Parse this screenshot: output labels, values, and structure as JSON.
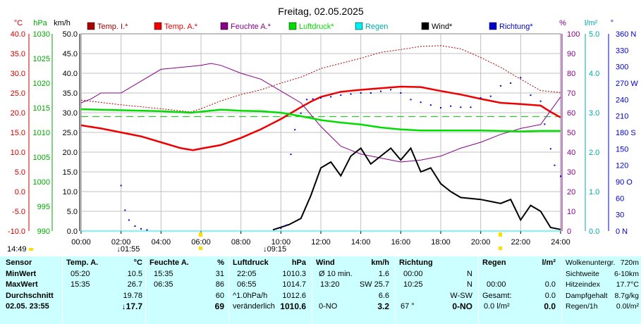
{
  "header": {
    "title": "Freitag, 02.05.2025",
    "units": [
      "°C",
      "hPa",
      "km/h",
      "%",
      "l/m²",
      "°"
    ],
    "legend": [
      {
        "label": "Temp. I.*",
        "color": "#aa0000"
      },
      {
        "label": "Temp. A.*",
        "color": "#ee0000"
      },
      {
        "label": "Feuchte A.*",
        "color": "#880088"
      },
      {
        "label": "Luftdruck*",
        "color": "#00dd00"
      },
      {
        "label": "Regen",
        "color": "#00eeee"
      },
      {
        "label": "Wind*",
        "color": "#000000"
      },
      {
        "label": "Richtung*",
        "color": "#0000cc"
      }
    ]
  },
  "chart_data": {
    "type": "line",
    "title": "Freitag, 02.05.2025",
    "x_ticks": [
      "00:00",
      "02:00",
      "04:00",
      "06:00",
      "08:00",
      "10:00",
      "12:00",
      "14:00",
      "16:00",
      "18:00",
      "20:00",
      "22:00",
      "24:00"
    ],
    "x_range_hours": [
      0,
      24
    ],
    "axes": {
      "temp": {
        "unit": "°C",
        "range": [
          -10,
          40
        ],
        "ticks": [
          "40.0",
          "35.0",
          "30.0",
          "25.0",
          "20.0",
          "15.0",
          "10.0",
          "5.0",
          "0.0",
          "-5.0",
          "-10.0"
        ],
        "color": "#cc0000"
      },
      "pressure": {
        "unit": "hPa",
        "range": [
          990,
          1030
        ],
        "ticks": [
          "1030",
          "1025",
          "1020",
          "1015",
          "1010",
          "1005",
          "1000",
          "995",
          "990"
        ],
        "color": "#00aa00"
      },
      "wind": {
        "unit": "km/h",
        "range": [
          0,
          50
        ],
        "ticks": [
          "50.0",
          "45.0",
          "40.0",
          "35.0",
          "30.0",
          "25.0",
          "20.0",
          "15.0",
          "10.0",
          "5.0",
          "0.0"
        ],
        "color": "#000000"
      },
      "humidity": {
        "unit": "%",
        "range": [
          0,
          100
        ],
        "ticks": [
          "100",
          "90",
          "80",
          "70",
          "60",
          "50",
          "40",
          "30",
          "20",
          "10",
          "0"
        ],
        "color": "#880088"
      },
      "rain": {
        "unit": "l/m²",
        "range": [
          0,
          5
        ],
        "ticks": [
          "5.0",
          "4.0",
          "3.0",
          "2.0",
          "1.0",
          "0.0"
        ],
        "color": "#00aaaa"
      },
      "direction": {
        "unit": "°",
        "range": [
          0,
          360
        ],
        "ticks": [
          "360 N",
          "330",
          "300",
          "270 W",
          "240",
          "210",
          "180 S",
          "150",
          "120",
          "90 O",
          "60",
          "30",
          "0 N"
        ],
        "color": "#0000cc"
      }
    },
    "series": [
      {
        "name": "Temp. I.*",
        "axis": "temp",
        "color": "#aa0000",
        "style": "dotted",
        "points": [
          [
            0,
            23.2
          ],
          [
            2,
            22
          ],
          [
            4,
            21
          ],
          [
            5.5,
            20.2
          ],
          [
            6,
            21
          ],
          [
            7,
            23
          ],
          [
            8,
            24.6
          ],
          [
            9,
            25.8
          ],
          [
            10,
            27.5
          ],
          [
            11,
            29
          ],
          [
            12,
            31.2
          ],
          [
            13,
            32.5
          ],
          [
            14,
            33.8
          ],
          [
            15,
            35.3
          ],
          [
            16,
            36
          ],
          [
            17,
            36.8
          ],
          [
            18,
            37
          ],
          [
            19,
            36.2
          ],
          [
            20,
            34
          ],
          [
            21,
            31.5
          ],
          [
            22,
            28.5
          ],
          [
            23,
            25.6
          ],
          [
            24,
            25.1
          ]
        ]
      },
      {
        "name": "Temp. A.*",
        "axis": "temp",
        "color": "#ee0000",
        "style": "solid",
        "points": [
          [
            0,
            16.8
          ],
          [
            1,
            16
          ],
          [
            2,
            15
          ],
          [
            3,
            14
          ],
          [
            4,
            12.5
          ],
          [
            5,
            11
          ],
          [
            5.6,
            10.5
          ],
          [
            6,
            10.9
          ],
          [
            7,
            11.8
          ],
          [
            8,
            13.6
          ],
          [
            9,
            15.8
          ],
          [
            10,
            18.4
          ],
          [
            11,
            21.4
          ],
          [
            11.5,
            22.8
          ],
          [
            12,
            24
          ],
          [
            13,
            25.3
          ],
          [
            14,
            25.8
          ],
          [
            15,
            26.2
          ],
          [
            16,
            26.6
          ],
          [
            17,
            26.5
          ],
          [
            18,
            25.5
          ],
          [
            19,
            24.6
          ],
          [
            20,
            23.5
          ],
          [
            21,
            22.5
          ],
          [
            22,
            22.2
          ],
          [
            23,
            21.8
          ],
          [
            23.5,
            20.2
          ],
          [
            24,
            18.8
          ]
        ]
      },
      {
        "name": "Feuchte A.*",
        "axis": "humidity",
        "color": "#880088",
        "style": "solid",
        "points": [
          [
            0,
            65
          ],
          [
            0.5,
            67
          ],
          [
            1,
            70
          ],
          [
            2,
            70
          ],
          [
            3,
            76
          ],
          [
            4,
            82
          ],
          [
            5,
            83
          ],
          [
            6,
            84
          ],
          [
            6.5,
            85
          ],
          [
            7,
            84
          ],
          [
            8,
            80
          ],
          [
            9,
            77
          ],
          [
            10,
            71
          ],
          [
            11,
            65
          ],
          [
            12,
            53
          ],
          [
            12.5,
            48
          ],
          [
            13,
            43
          ],
          [
            14,
            39
          ],
          [
            15,
            37
          ],
          [
            16,
            35
          ],
          [
            17,
            36
          ],
          [
            18,
            38
          ],
          [
            19,
            42
          ],
          [
            20,
            45
          ],
          [
            21,
            49
          ],
          [
            22,
            52
          ],
          [
            23,
            54
          ],
          [
            24,
            68
          ]
        ]
      },
      {
        "name": "Luftdruck*",
        "axis": "pressure",
        "color": "#00dd00",
        "style": "solid",
        "points": [
          [
            0,
            1014.7
          ],
          [
            2,
            1014.5
          ],
          [
            4,
            1014.3
          ],
          [
            5.5,
            1014
          ],
          [
            7,
            1014.6
          ],
          [
            8,
            1014.4
          ],
          [
            9,
            1014.3
          ],
          [
            10,
            1014
          ],
          [
            11,
            1013.3
          ],
          [
            12,
            1012.5
          ],
          [
            13,
            1012
          ],
          [
            14,
            1011.6
          ],
          [
            15,
            1011
          ],
          [
            16,
            1010.6
          ],
          [
            17,
            1010.4
          ],
          [
            18,
            1010.4
          ],
          [
            19,
            1010.4
          ],
          [
            20,
            1010.4
          ],
          [
            21,
            1010.3
          ],
          [
            22,
            1010.2
          ],
          [
            23,
            1010.3
          ],
          [
            24,
            1010.3
          ]
        ]
      },
      {
        "name": "Wind*",
        "axis": "wind",
        "color": "#000000",
        "style": "solid",
        "points": [
          [
            9.6,
            0.3
          ],
          [
            10.4,
            1.6
          ],
          [
            11,
            3.2
          ],
          [
            11.5,
            9
          ],
          [
            12,
            16
          ],
          [
            12.5,
            17.5
          ],
          [
            13,
            14
          ],
          [
            13.5,
            19
          ],
          [
            14,
            21
          ],
          [
            14.5,
            17
          ],
          [
            15,
            19
          ],
          [
            15.5,
            21
          ],
          [
            16,
            18
          ],
          [
            16.5,
            21
          ],
          [
            17,
            15
          ],
          [
            17.5,
            16
          ],
          [
            18,
            12
          ],
          [
            18.5,
            10
          ],
          [
            19,
            8.5
          ],
          [
            20,
            8
          ],
          [
            20.5,
            7.5
          ],
          [
            21,
            7
          ],
          [
            21.5,
            8
          ],
          [
            22,
            2.8
          ],
          [
            22.5,
            6.5
          ],
          [
            23,
            5
          ],
          [
            23.5,
            0.9
          ],
          [
            24,
            0.4
          ]
        ]
      },
      {
        "name": "Richtung*",
        "axis": "direction",
        "color": "#0000cc",
        "style": "dots",
        "points": [
          [
            2,
            83
          ],
          [
            2.2,
            38
          ],
          [
            2.4,
            20
          ],
          [
            2.7,
            9
          ],
          [
            3,
            4
          ],
          [
            3.3,
            2
          ],
          [
            10,
            5
          ],
          [
            10.3,
            11
          ],
          [
            10.5,
            140
          ],
          [
            10.7,
            185
          ],
          [
            11,
            215
          ],
          [
            11.3,
            240
          ],
          [
            11.6,
            241
          ],
          [
            12,
            243
          ],
          [
            12.5,
            245
          ],
          [
            13,
            248
          ],
          [
            13.5,
            250
          ],
          [
            14,
            252
          ],
          [
            14.5,
            252
          ],
          [
            15,
            255
          ],
          [
            15.5,
            258
          ],
          [
            16,
            252
          ],
          [
            16.5,
            240
          ],
          [
            17,
            235
          ],
          [
            17.5,
            230
          ],
          [
            18,
            225
          ],
          [
            18.5,
            228
          ],
          [
            19,
            226
          ],
          [
            19.5,
            226
          ],
          [
            20,
            243
          ],
          [
            20.5,
            246
          ],
          [
            21,
            265
          ],
          [
            21.5,
            270
          ],
          [
            22,
            280
          ],
          [
            22.5,
            248
          ],
          [
            23,
            237
          ],
          [
            23.2,
            195
          ],
          [
            23.5,
            150
          ],
          [
            23.7,
            120
          ],
          [
            24,
            100
          ]
        ]
      },
      {
        "name": "Regen",
        "axis": "rain",
        "color": "#00eeee",
        "style": "solid",
        "points": [
          [
            0,
            0
          ],
          [
            24,
            0
          ]
        ]
      }
    ],
    "reference_lines": [
      {
        "axis": "temp",
        "value": 19,
        "style": "dashed",
        "color": "#00cc00"
      }
    ],
    "markers": [
      {
        "label": "14:49",
        "at": -1.1
      },
      {
        "label": "01:55",
        "at": 1.92
      },
      {
        "label": "09:15",
        "at": 9.25
      }
    ]
  },
  "panel": {
    "sensor": {
      "h1": "Sensor",
      "rows": [
        "MinWert",
        "MaxWert",
        "Durchschnitt",
        "02.05. 23:55"
      ]
    },
    "temp": {
      "h1": "Temp. A.",
      "h2": "°C",
      "rows": [
        [
          "05:20",
          "10.5"
        ],
        [
          "15:35",
          "26.7"
        ],
        [
          "",
          "19.78"
        ],
        [
          "",
          "↓17.7"
        ]
      ]
    },
    "hum": {
      "h1": "Feuchte A.",
      "h2": "%",
      "rows": [
        [
          "15:35",
          "31"
        ],
        [
          "06:35",
          "86"
        ],
        [
          "",
          "60"
        ],
        [
          "",
          "69"
        ]
      ]
    },
    "press": {
      "h1": "Luftdruck",
      "h2": "hPa",
      "rows": [
        [
          "22:05",
          "1010.3"
        ],
        [
          "06:55",
          "1014.7"
        ],
        [
          "^1.0hPa/h",
          "1012.6"
        ],
        [
          "veränderlich",
          "1010.6"
        ]
      ]
    },
    "wind": {
      "h1": "Wind",
      "h2": "km/h",
      "rows": [
        [
          "Ø 10 min.",
          "1.6"
        ],
        [
          "13:20",
          "SW 25.7"
        ],
        [
          "",
          "6.6"
        ],
        [
          "0-NO",
          "3.2"
        ]
      ]
    },
    "dir": {
      "h1": "Richtung",
      "h2": "",
      "rows": [
        [
          "00:00",
          "N"
        ],
        [
          "10:25",
          "N"
        ],
        [
          "",
          "W-SW"
        ],
        [
          "67 °",
          "0-NO"
        ]
      ]
    },
    "rain": {
      "h1": "Regen",
      "h2": "l/m²",
      "rows": [
        [
          "",
          ""
        ],
        [
          "00:00",
          "0.0"
        ],
        [
          "Gesamt:",
          "0.0"
        ],
        [
          "0.0 l/m²",
          "0.0"
        ]
      ]
    },
    "extra": {
      "rows": [
        [
          "Wolkenuntergr.",
          "720m"
        ],
        [
          "Sichtweite",
          "6-10km"
        ],
        [
          "Hitzeindex",
          "17.7°C"
        ],
        [
          "Dampfgehalt",
          "8.7g/kg"
        ],
        [
          "Regen/1h",
          "0.0l/m²"
        ]
      ]
    }
  }
}
